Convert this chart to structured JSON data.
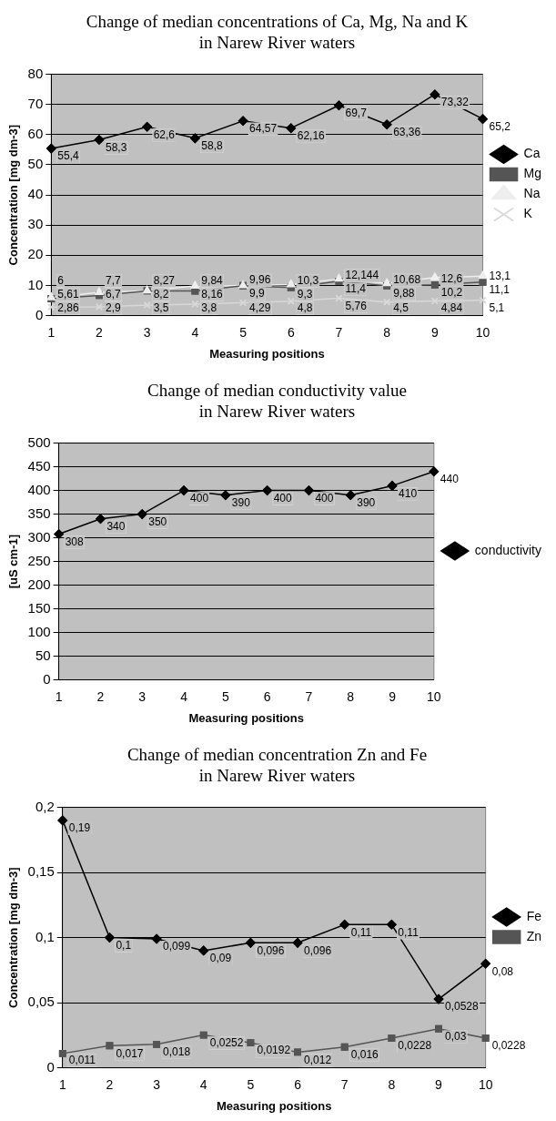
{
  "chart_data": [
    {
      "type": "line",
      "title": [
        "Change of median concentrations of Ca, Mg, Na and K",
        "in Narew River waters"
      ],
      "xlabel": "Measuring positions",
      "ylabel": "Concentration [mg dm-3]",
      "categories": [
        "1",
        "2",
        "3",
        "4",
        "5",
        "6",
        "7",
        "8",
        "9",
        "10"
      ],
      "ylim": [
        0,
        80
      ],
      "yticks": [
        0,
        10,
        20,
        30,
        40,
        50,
        60,
        70,
        80
      ],
      "grid": "y",
      "legend": "right",
      "series": [
        {
          "name": "Ca",
          "color": "#000000",
          "marker": "diamond",
          "values": [
            55.4,
            58.3,
            62.6,
            58.8,
            64.57,
            62.16,
            69.7,
            63.36,
            73.32,
            65.2
          ],
          "value_labels": [
            "55,4",
            "58,3",
            "62,6",
            "58,8",
            "64,57",
            "62,16",
            "69,7",
            "63,36",
            "73,32",
            "65,2"
          ]
        },
        {
          "name": "Mg",
          "color": "#555555",
          "marker": "square",
          "values": [
            5.61,
            6.7,
            8.2,
            8.16,
            9.9,
            9.3,
            11.4,
            9.88,
            10.2,
            11.1
          ],
          "value_labels": [
            "5,61",
            "6,7",
            "8,2",
            "8,16",
            "9,9",
            "9,3",
            "11,4",
            "9,88",
            "10,2",
            "11,1"
          ]
        },
        {
          "name": "Na",
          "color": "#eeeeee",
          "marker": "triangle",
          "values": [
            6,
            7.7,
            8.27,
            9.84,
            9.96,
            10.3,
            12.144,
            10.68,
            12.6,
            13.1
          ],
          "value_labels": [
            "6",
            "7,7",
            "8,27",
            "9,84",
            "9,96",
            "10,3",
            "12,144",
            "10,68",
            "12,6",
            "13,1"
          ]
        },
        {
          "name": "K",
          "color": "#d8d8d8",
          "marker": "cross",
          "values": [
            2.86,
            2.9,
            3.5,
            3.8,
            4.29,
            4.8,
            5.76,
            4.5,
            4.84,
            5.1
          ],
          "value_labels": [
            "2,86",
            "2,9",
            "3,5",
            "3,8",
            "4,29",
            "4,8",
            "5,76",
            "4,5",
            "4,84",
            "5,1"
          ]
        }
      ]
    },
    {
      "type": "line",
      "title": [
        "Change of median conductivity value",
        "in Narew River waters"
      ],
      "xlabel": "Measuring positions",
      "ylabel": "[uS cm-1]",
      "categories": [
        "1",
        "2",
        "3",
        "4",
        "5",
        "6",
        "7",
        "8",
        "9",
        "10"
      ],
      "ylim": [
        0,
        500
      ],
      "yticks": [
        0,
        50,
        100,
        150,
        200,
        250,
        300,
        350,
        400,
        450,
        500
      ],
      "grid": "y",
      "legend": "right",
      "data_labels": true,
      "series": [
        {
          "name": "conductivity",
          "color": "#000000",
          "marker": "diamond",
          "values": [
            308,
            340,
            350,
            400,
            390,
            400,
            400,
            390,
            410,
            440
          ]
        }
      ]
    },
    {
      "type": "line",
      "title": [
        "Change of median concentration Zn and Fe",
        "in Narew River waters"
      ],
      "xlabel": "Measuring positions",
      "ylabel": "Concentration [mg dm-3]",
      "categories": [
        "1",
        "2",
        "3",
        "4",
        "5",
        "6",
        "7",
        "8",
        "9",
        "10"
      ],
      "ylim": [
        0,
        0.2
      ],
      "yticks": [
        0,
        {
          "value": 0.05,
          "label": "0,05"
        },
        {
          "value": 0.1,
          "label": "0,1"
        },
        {
          "value": 0.15,
          "label": "0,15"
        },
        {
          "value": 0.2,
          "label": "0,2"
        }
      ],
      "grid": "y",
      "legend": "right",
      "series": [
        {
          "name": "Fe",
          "color": "#000000",
          "marker": "diamond",
          "values": [
            0.19,
            0.1,
            0.099,
            0.09,
            0.096,
            0.096,
            0.11,
            0.11,
            0.0528,
            0.08
          ],
          "value_labels": [
            "0,19",
            "0,1",
            "0,099",
            "0,09",
            "0,096",
            "0,096",
            "0,11",
            "0,11",
            "0,0528",
            "0,08"
          ]
        },
        {
          "name": "Zn",
          "color": "#555555",
          "marker": "square",
          "values": [
            0.011,
            0.017,
            0.018,
            0.0252,
            0.0192,
            0.012,
            0.016,
            0.0228,
            0.03,
            0.0228
          ],
          "value_labels": [
            "0,011",
            "0,017",
            "0,018",
            "0,0252",
            "0,0192",
            "0,012",
            "0,016",
            "0,0228",
            "0,03",
            "0,0228"
          ]
        }
      ]
    }
  ]
}
